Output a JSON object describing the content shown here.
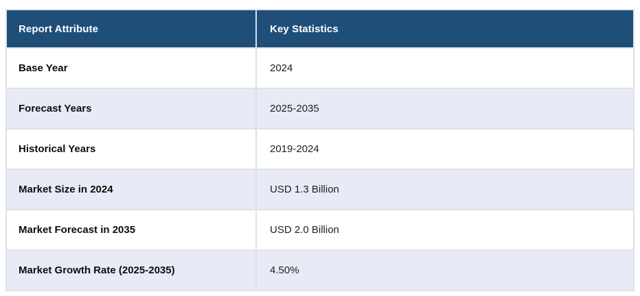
{
  "theme": {
    "header_bg": "#1f4e79",
    "header_text": "#ffffff",
    "stripe_bg": "#e8eaf6",
    "row_bg": "#ffffff",
    "border": "#dde1e8",
    "attribute_text": "#0d0d0d",
    "value_text": "#1f1f1f"
  },
  "table": {
    "columns": [
      {
        "label": "Report Attribute"
      },
      {
        "label": "Key Statistics"
      }
    ],
    "rows": [
      {
        "attribute": "Base Year",
        "value": "2024"
      },
      {
        "attribute": "Forecast Years",
        "value": "2025-2035"
      },
      {
        "attribute": "Historical Years",
        "value": "2019-2024"
      },
      {
        "attribute": "Market Size in 2024",
        "value": "USD 1.3 Billion"
      },
      {
        "attribute": "Market Forecast in 2035",
        "value": "USD 2.0 Billion"
      },
      {
        "attribute": "Market Growth Rate (2025-2035)",
        "value": "4.50%"
      }
    ]
  }
}
